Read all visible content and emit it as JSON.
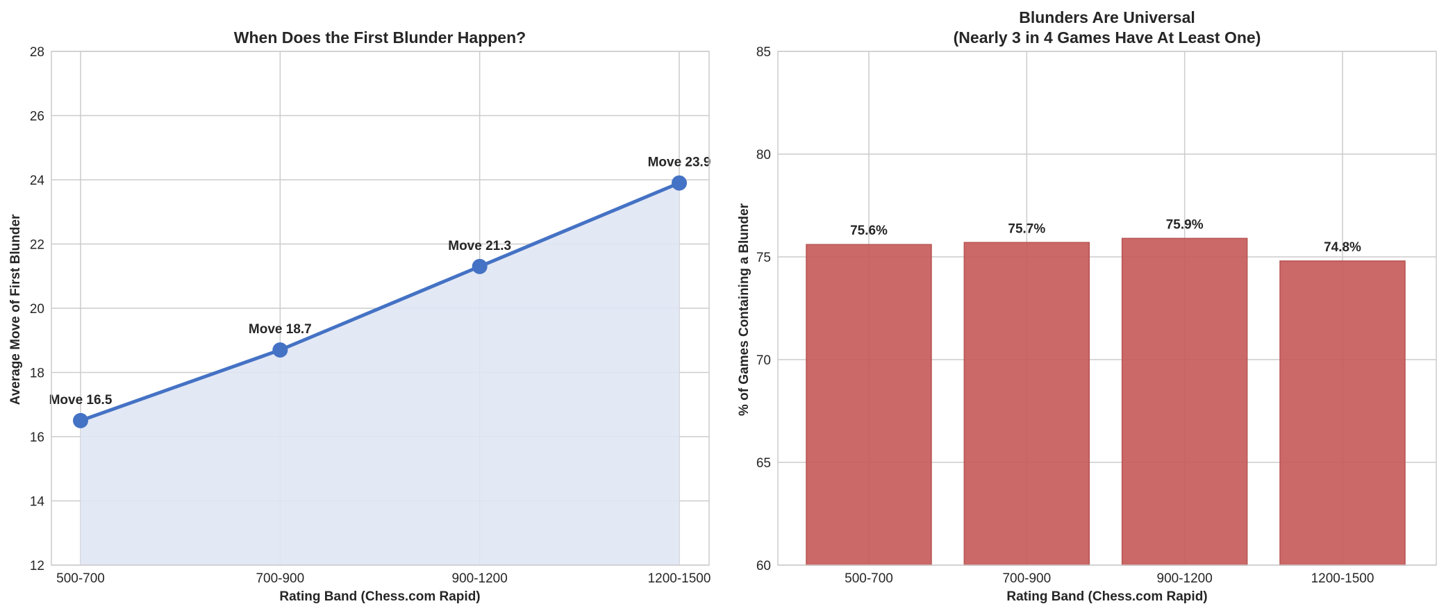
{
  "chart_data": [
    {
      "type": "line",
      "title": "When Does the First Blunder Happen?",
      "xlabel": "Rating Band (Chess.com Rapid)",
      "ylabel": "Average Move of First Blunder",
      "categories": [
        "500-700",
        "700-900",
        "900-1200",
        "1200-1500"
      ],
      "values": [
        16.5,
        18.7,
        21.3,
        23.9
      ],
      "data_labels": [
        "Move 16.5",
        "Move 18.7",
        "Move 21.3",
        "Move 23.9"
      ],
      "ylim": [
        12,
        28
      ],
      "yticks": [
        12,
        14,
        16,
        18,
        20,
        22,
        24,
        26,
        28
      ],
      "grid": true,
      "fill_under": true,
      "colors": {
        "line": "#4472c4",
        "fill": "#e0e6f4"
      }
    },
    {
      "type": "bar",
      "title": [
        "Blunders Are Universal",
        "(Nearly 3 in 4 Games Have At Least One)"
      ],
      "xlabel": "Rating Band (Chess.com Rapid)",
      "ylabel": "% of Games Containing a Blunder",
      "categories": [
        "500-700",
        "700-900",
        "900-1200",
        "1200-1500"
      ],
      "values": [
        75.6,
        75.7,
        75.9,
        74.8
      ],
      "data_labels": [
        "75.6%",
        "75.7%",
        "75.9%",
        "74.8%"
      ],
      "ylim": [
        60,
        85
      ],
      "yticks": [
        60,
        65,
        70,
        75,
        80,
        85
      ],
      "grid": true,
      "colors": {
        "bar": "#c65c5b",
        "bar_edge": "#b85452"
      }
    }
  ]
}
